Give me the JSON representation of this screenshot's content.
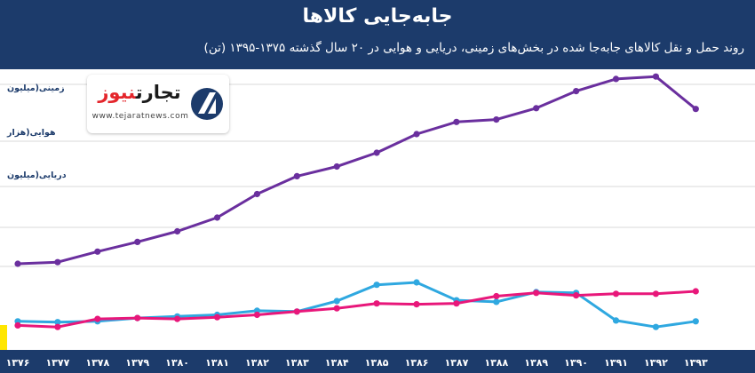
{
  "header": {
    "title": "جابه‌جایی کالاها",
    "subtitle": "روند حمل و نقل  کالاهای جابه‌جا شده در بخش‌های زمینی، دریایی و هوایی در ۲۰ سال گذشته ۱۳۷۵-۱۳۹۵ (تن)"
  },
  "logo": {
    "name_part1": "تجارت",
    "name_part2": "نیوز",
    "url": "www.tejaratnews.com",
    "icon": "tejaratnews-logo-icon"
  },
  "colors": {
    "header_bg": "#1c3b6b",
    "ground": "#6a2f9e",
    "air": "#2fa8e0",
    "sea": "#e8177a",
    "grid": "#d9d9d9",
    "highlight": "#ffe600"
  },
  "chart_data": {
    "type": "line",
    "title": "جابه‌جایی کالاها",
    "subtitle": "روند حمل و نقل  کالاهای جابه‌جا شده در بخش‌های زمینی، دریایی و هوایی در ۲۰ سال گذشته ۱۳۷۵-۱۳۹۵ (تن)",
    "x": [
      "۱۳۷۶",
      "۱۳۷۷",
      "۱۳۷۸",
      "۱۳۷۹",
      "۱۳۸۰",
      "۱۳۸۱",
      "۱۳۸۲",
      "۱۳۸۳",
      "۱۳۸۴",
      "۱۳۸۵",
      "۱۳۸۶",
      "۱۳۸۷",
      "۱۳۸۸",
      "۱۳۸۹",
      "۱۳۹۰",
      "۱۳۹۱",
      "۱۳۹۲",
      "۱۳۹۳"
    ],
    "ylim": [
      0,
      320
    ],
    "grid": true,
    "series": [
      {
        "name": "زمینی(میلیون",
        "color": "#6a2f9e",
        "values": [
          80,
          82,
          95,
          107,
          120,
          137,
          166,
          188,
          200,
          217,
          240,
          255,
          258,
          272,
          293,
          308,
          311,
          271
        ]
      },
      {
        "name": "هوایی(هزار",
        "color": "#2fa8e0",
        "values": [
          9,
          8,
          9,
          13,
          15,
          17,
          22,
          21,
          34,
          54,
          57,
          35,
          33,
          45,
          44,
          10,
          2,
          9
        ]
      },
      {
        "name": "دریایی(میلیون",
        "color": "#e8177a",
        "values": [
          4,
          2,
          12,
          13,
          12,
          14,
          17,
          21,
          25,
          31,
          30,
          31,
          40,
          44,
          41,
          43,
          43,
          46
        ]
      }
    ],
    "legend": "left"
  }
}
